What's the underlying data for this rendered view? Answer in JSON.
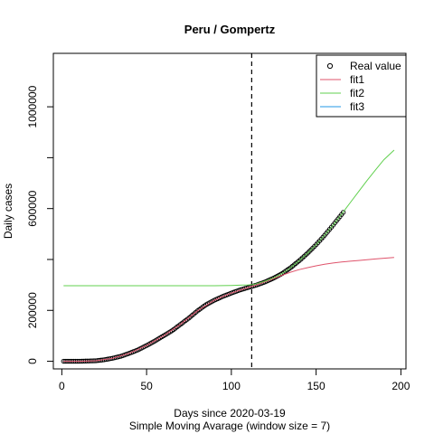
{
  "chart_data": {
    "type": "line",
    "title": "Peru / Gompertz",
    "xlabel": "Days since 2020-03-19",
    "subtitle": "Simple Moving Avarage (window size = 7)",
    "ylabel": "Daily cases",
    "xlim": [
      -5,
      203
    ],
    "ylim": [
      -30000,
      1210000
    ],
    "x_ticks": [
      0,
      50,
      100,
      150,
      200
    ],
    "y_ticks": [
      0,
      200000,
      600000,
      1000000
    ],
    "y_tick_labels": [
      "0",
      "200000",
      "600000",
      "1000000"
    ],
    "vline": {
      "x": 112,
      "style": "dashed"
    },
    "legend": {
      "position": "top-right",
      "entries": [
        {
          "name": "Real value",
          "type": "point",
          "color": "#000000"
        },
        {
          "name": "fit1",
          "type": "line",
          "color": "#DF536B"
        },
        {
          "name": "fit2",
          "type": "line",
          "color": "#61D04F"
        },
        {
          "name": "fit3",
          "type": "line",
          "color": "#2297E6"
        }
      ]
    },
    "series": [
      {
        "name": "Real value",
        "type": "points",
        "color": "#000000",
        "x": [
          1,
          5,
          10,
          15,
          20,
          25,
          30,
          35,
          40,
          45,
          50,
          55,
          60,
          65,
          70,
          75,
          80,
          85,
          90,
          95,
          100,
          105,
          110,
          115,
          120,
          125,
          130,
          135,
          140,
          145,
          150,
          155,
          160,
          166
        ],
        "y": [
          0,
          0,
          0,
          1000,
          2000,
          6000,
          12000,
          20000,
          32000,
          45000,
          62000,
          80000,
          100000,
          120000,
          145000,
          170000,
          198000,
          222000,
          240000,
          255000,
          268000,
          280000,
          290000,
          300000,
          312000,
          327000,
          345000,
          368000,
          395000,
          425000,
          458000,
          495000,
          535000,
          585000
        ]
      },
      {
        "name": "fit1",
        "type": "line",
        "color": "#DF536B",
        "x": [
          1,
          10,
          20,
          30,
          40,
          50,
          60,
          70,
          80,
          90,
          100,
          110,
          115,
          120,
          125,
          130,
          135,
          140,
          145,
          150,
          155,
          160,
          165,
          170,
          175,
          180,
          185,
          190,
          196
        ],
        "y": [
          0,
          0,
          2000,
          12000,
          32000,
          62000,
          100000,
          145000,
          198000,
          240000,
          268000,
          290000,
          300000,
          312000,
          325000,
          338000,
          350000,
          360000,
          368000,
          375000,
          381000,
          386000,
          390000,
          393000,
          396000,
          399000,
          402000,
          405000,
          408000
        ]
      },
      {
        "name": "fit2",
        "type": "line",
        "color": "#61D04F",
        "x": [
          1,
          20,
          40,
          60,
          80,
          90,
          100,
          105,
          110,
          113,
          115,
          120,
          125,
          130,
          135,
          140,
          145,
          150,
          155,
          160,
          165,
          170,
          175,
          180,
          185,
          190,
          196
        ],
        "y": [
          297000,
          297000,
          297000,
          297000,
          297000,
          297000,
          298000,
          299000,
          300000,
          302000,
          305000,
          315000,
          328000,
          345000,
          368000,
          395000,
          425000,
          458000,
          495000,
          535000,
          578000,
          622000,
          666000,
          710000,
          752000,
          792000,
          830000
        ]
      },
      {
        "name": "fit3",
        "type": "line",
        "color": "#2297E6",
        "x": [],
        "y": []
      }
    ]
  }
}
